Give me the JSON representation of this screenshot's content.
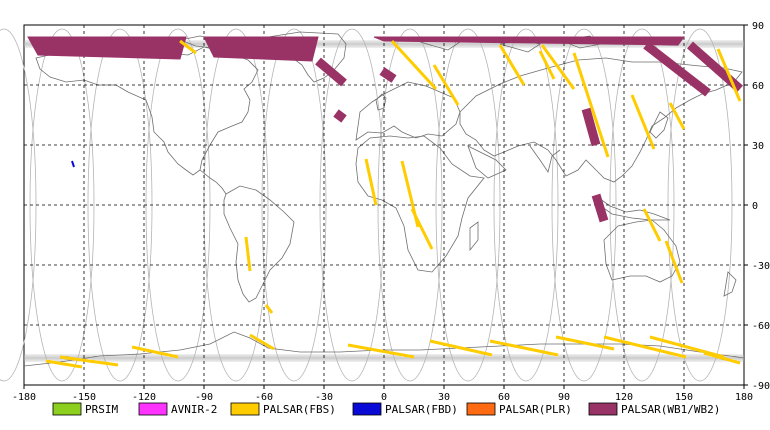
{
  "map": {
    "projection": "equirectangular",
    "lon_range": [
      -180,
      180
    ],
    "lat_range": [
      -90,
      90
    ],
    "lon_ticks": [
      -180,
      -150,
      -120,
      -90,
      -60,
      -30,
      0,
      30,
      60,
      90,
      120,
      150,
      180
    ],
    "lat_ticks": [
      90,
      60,
      30,
      0,
      -30,
      -60,
      -90
    ],
    "lon_tick_labels": [
      "-180",
      "-150",
      "-120",
      "-90",
      "-60",
      "-30",
      "0",
      "30",
      "60",
      "90",
      "120",
      "150",
      "180"
    ],
    "lat_tick_labels": [
      "90",
      "60",
      "30",
      "0",
      "-30",
      "-60",
      "-90"
    ],
    "grid": "dashed",
    "colors": {
      "background": "#ffffff",
      "coastline": "#6f6f6f",
      "orbit": "#b4b4b4",
      "grid": "#000000"
    }
  },
  "legend": {
    "items": [
      {
        "label": "PRSIM",
        "color": "#8ccf1e"
      },
      {
        "label": "AVNIR-2",
        "color": "#ff33ff"
      },
      {
        "label": "PALSAR(FBS)",
        "color": "#ffcc00"
      },
      {
        "label": "PALSAR(FBD)",
        "color": "#0a0ad6"
      },
      {
        "label": "PALSAR(PLR)",
        "color": "#ff6a12"
      },
      {
        "label": "PALSAR(WB1/WB2)",
        "color": "#993366"
      }
    ]
  },
  "observations": {
    "palsar_wb": [
      {
        "lon": [
          -178,
          -99
        ],
        "lat": [
          84,
          73
        ]
      },
      {
        "lon": [
          -90,
          -33
        ],
        "lat": [
          84,
          72
        ]
      },
      {
        "lon": [
          -33,
          -20
        ],
        "lat": [
          72,
          61
        ]
      },
      {
        "lon": [
          -24,
          -20
        ],
        "lat": [
          46,
          43
        ]
      },
      {
        "lon": [
          -1,
          5
        ],
        "lat": [
          67,
          63
        ]
      },
      {
        "lon": [
          -5,
          150
        ],
        "lat": [
          84,
          80
        ]
      },
      {
        "lon": [
          131,
          162
        ],
        "lat": [
          80,
          56
        ]
      },
      {
        "lon": [
          153,
          178
        ],
        "lat": [
          80,
          58
        ]
      },
      {
        "lon": [
          101,
          106
        ],
        "lat": [
          48,
          30
        ]
      },
      {
        "lon": [
          106,
          110
        ],
        "lat": [
          5,
          -8
        ]
      }
    ],
    "palsar_fbs": [
      {
        "lon": [
          -102,
          -94
        ],
        "lat": [
          82,
          76
        ]
      },
      {
        "lon": [
          4,
          26
        ],
        "lat": [
          82,
          58
        ]
      },
      {
        "lon": [
          25,
          37
        ],
        "lat": [
          70,
          50
        ]
      },
      {
        "lon": [
          58,
          70
        ],
        "lat": [
          80,
          60
        ]
      },
      {
        "lon": [
          79,
          95
        ],
        "lat": [
          80,
          58
        ]
      },
      {
        "lon": [
          95,
          112
        ],
        "lat": [
          76,
          24
        ]
      },
      {
        "lon": [
          78,
          85
        ],
        "lat": [
          77,
          63
        ]
      },
      {
        "lon": [
          124,
          135
        ],
        "lat": [
          55,
          28
        ]
      },
      {
        "lon": [
          143,
          150
        ],
        "lat": [
          51,
          38
        ]
      },
      {
        "lon": [
          167,
          178
        ],
        "lat": [
          78,
          52
        ]
      },
      {
        "lon": [
          -9,
          -4
        ],
        "lat": [
          23,
          0
        ]
      },
      {
        "lon": [
          9,
          17
        ],
        "lat": [
          22,
          -11
        ]
      },
      {
        "lon": [
          14,
          24
        ],
        "lat": [
          -2,
          -22
        ]
      },
      {
        "lon": [
          130,
          138
        ],
        "lat": [
          -2,
          -18
        ]
      },
      {
        "lon": [
          141,
          149
        ],
        "lat": [
          -18,
          -39
        ]
      },
      {
        "lon": [
          -69,
          -67
        ],
        "lat": [
          -16,
          -33
        ]
      },
      {
        "lon": [
          -59,
          -56
        ],
        "lat": [
          -50,
          -54
        ]
      },
      {
        "lon": [
          -67,
          -55
        ],
        "lat": [
          -65,
          -72
        ]
      },
      {
        "lon": [
          -162,
          -133
        ],
        "lat": [
          -76,
          -80
        ]
      },
      {
        "lon": [
          -126,
          -103
        ],
        "lat": [
          -71,
          -76
        ]
      },
      {
        "lon": [
          -18,
          15
        ],
        "lat": [
          -70,
          -76
        ]
      },
      {
        "lon": [
          23,
          54
        ],
        "lat": [
          -68,
          -75
        ]
      },
      {
        "lon": [
          53,
          87
        ],
        "lat": [
          -68,
          -75
        ]
      },
      {
        "lon": [
          86,
          115
        ],
        "lat": [
          -66,
          -72
        ]
      },
      {
        "lon": [
          110,
          151
        ],
        "lat": [
          -66,
          -76
        ]
      },
      {
        "lon": [
          133,
          170
        ],
        "lat": [
          -66,
          -76
        ]
      },
      {
        "lon": [
          160,
          178
        ],
        "lat": [
          -74,
          -79
        ]
      },
      {
        "lon": [
          -169,
          -151
        ],
        "lat": [
          -78,
          -81
        ]
      }
    ],
    "palsar_fbd": [
      {
        "lon": [
          -156,
          -155
        ],
        "lat": [
          22,
          19
        ]
      }
    ]
  }
}
